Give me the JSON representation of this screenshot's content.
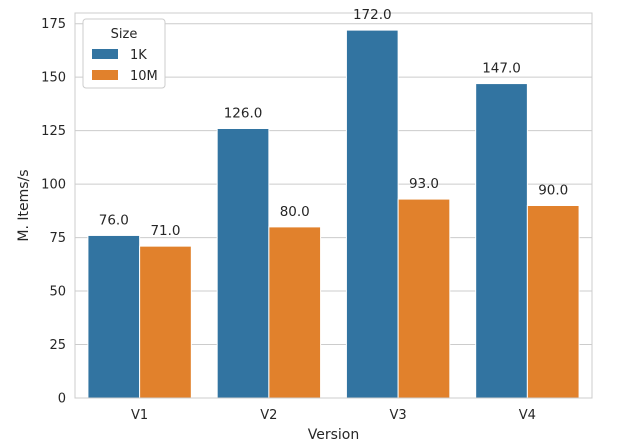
{
  "chart_data": {
    "type": "bar",
    "categories": [
      "V1",
      "V2",
      "V3",
      "V4"
    ],
    "series": [
      {
        "name": "1K",
        "values": [
          76.0,
          126.0,
          172.0,
          147.0
        ],
        "color": "#3274a1"
      },
      {
        "name": "10M",
        "values": [
          71.0,
          80.0,
          93.0,
          90.0
        ],
        "color": "#e1812c"
      }
    ],
    "data_labels": [
      [
        "76.0",
        "126.0",
        "172.0",
        "147.0"
      ],
      [
        "71.0",
        "80.0",
        "93.0",
        "90.0"
      ]
    ],
    "title": "",
    "xlabel": "Version",
    "ylabel": "M. Items/s",
    "ylim": [
      0,
      180
    ],
    "yticks": [
      0,
      25,
      50,
      75,
      100,
      125,
      150,
      175
    ],
    "grid": "horizontal",
    "legend": {
      "title": "Size",
      "placement": "top-left"
    }
  }
}
